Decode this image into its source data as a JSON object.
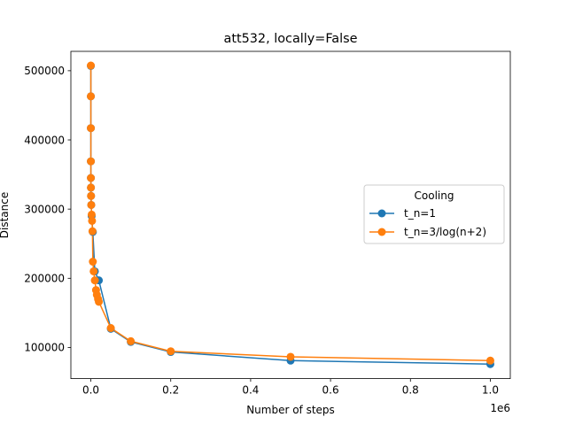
{
  "chart_data": {
    "type": "line",
    "title": "att532, locally=False",
    "xlabel": "Number of steps",
    "ylabel": "Distance",
    "x_offset_label": "1e6",
    "xlim": [
      -50000,
      1050000
    ],
    "ylim": [
      55000,
      528000
    ],
    "x_ticks": [
      0,
      200000,
      400000,
      600000,
      800000,
      1000000
    ],
    "x_tick_labels": [
      "0.0",
      "0.2",
      "0.4",
      "0.6",
      "0.8",
      "1.0"
    ],
    "y_ticks": [
      100000,
      200000,
      300000,
      400000,
      500000
    ],
    "y_tick_labels": [
      "100000",
      "200000",
      "300000",
      "400000",
      "500000"
    ],
    "legend": {
      "title": "Cooling",
      "placement": "center-right"
    },
    "x": [
      0,
      10,
      20,
      50,
      100,
      200,
      500,
      1000,
      2000,
      5000,
      10000,
      20000,
      50000,
      100000,
      200000,
      500000,
      1000000
    ],
    "series": [
      {
        "name": "t_n=1",
        "color": "#1f77b4",
        "values": [
          507000,
          463000,
          417000,
          369000,
          345000,
          331000,
          319000,
          306000,
          290000,
          267000,
          210000,
          197000,
          127000,
          108000,
          93500,
          81000,
          76000
        ]
      },
      {
        "name": "t_n=3/log(n+2)",
        "color": "#ff7f0e",
        "values": [
          507500,
          463000,
          417000,
          369000,
          345000,
          331000,
          319000,
          306000,
          292000,
          283000,
          268000,
          224000,
          210000,
          197000,
          183000,
          176000,
          170000,
          166000,
          128000,
          109000,
          94500,
          86500,
          81000
        ],
        "x": [
          0,
          10,
          20,
          50,
          100,
          200,
          500,
          1000,
          2000,
          3000,
          4000,
          5000,
          7000,
          10000,
          13000,
          15000,
          18000,
          20000,
          50000,
          100000,
          200000,
          500000,
          1000000
        ]
      }
    ]
  }
}
